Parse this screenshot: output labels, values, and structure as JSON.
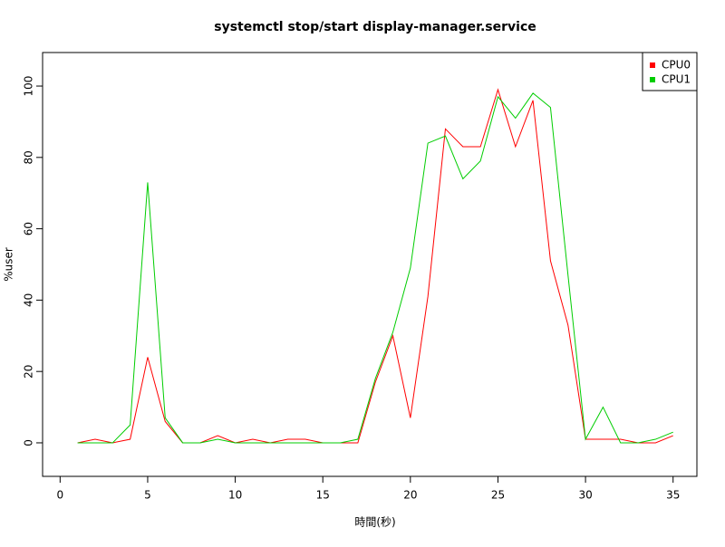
{
  "chart_data": {
    "type": "line",
    "title": "systemctl stop/start display-manager.service",
    "x_label": "時間(秒)",
    "y_label": "%user",
    "x": [
      1,
      2,
      3,
      4,
      5,
      6,
      7,
      8,
      9,
      10,
      11,
      12,
      13,
      14,
      15,
      16,
      17,
      18,
      19,
      20,
      21,
      22,
      23,
      24,
      25,
      26,
      27,
      28,
      29,
      30,
      31,
      32,
      33,
      34,
      35
    ],
    "series": [
      {
        "name": "CPU0",
        "color": "#ff0000",
        "values": [
          0,
          1,
          0,
          1,
          24,
          6,
          0,
          0,
          2,
          0,
          1,
          0,
          1,
          1,
          0,
          0,
          0,
          17,
          30,
          7,
          41,
          88,
          83,
          83,
          99,
          83,
          96,
          51,
          33,
          1,
          1,
          1,
          0,
          0,
          2
        ]
      },
      {
        "name": "CPU1",
        "color": "#00cd00",
        "values": [
          0,
          0,
          0,
          5,
          73,
          7,
          0,
          0,
          1,
          0,
          0,
          0,
          0,
          0,
          0,
          0,
          1,
          18,
          31,
          49,
          84,
          86,
          74,
          79,
          97,
          91,
          98,
          94,
          47,
          1,
          10,
          0,
          0,
          1,
          3
        ]
      }
    ],
    "xlim": [
      -1,
      36.36
    ],
    "ylim": [
      -9.4,
      109.4
    ],
    "xticks": [
      0,
      5,
      10,
      15,
      20,
      25,
      30,
      35
    ],
    "yticks": [
      0,
      20,
      40,
      60,
      80,
      100
    ],
    "legend": "top-right"
  }
}
